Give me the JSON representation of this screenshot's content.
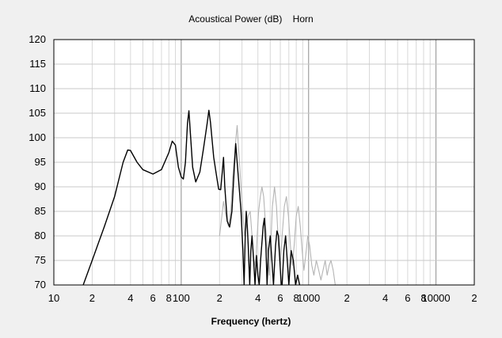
{
  "chart_data": {
    "type": "line",
    "title": "Acoustical Power (dB)    Horn",
    "xlabel": "Frequency (hertz)",
    "ylabel": "",
    "x_scale": "log",
    "xlim": [
      10,
      20000
    ],
    "ylim": [
      70,
      120
    ],
    "grid": true,
    "legend": "none",
    "y_tick_labels": [
      "70",
      "75",
      "80",
      "85",
      "90",
      "95",
      "100",
      "105",
      "110",
      "115",
      "120"
    ],
    "x_tick_labels": [
      {
        "x": 10,
        "label": "10"
      },
      {
        "x": 20,
        "label": "2"
      },
      {
        "x": 40,
        "label": "4"
      },
      {
        "x": 60,
        "label": "6"
      },
      {
        "x": 80,
        "label": "8"
      },
      {
        "x": 100,
        "label": "100"
      },
      {
        "x": 200,
        "label": "2"
      },
      {
        "x": 400,
        "label": "4"
      },
      {
        "x": 600,
        "label": "6"
      },
      {
        "x": 800,
        "label": "8"
      },
      {
        "x": 1000,
        "label": "1000"
      },
      {
        "x": 2000,
        "label": "2"
      },
      {
        "x": 4000,
        "label": "4"
      },
      {
        "x": 6000,
        "label": "6"
      },
      {
        "x": 8000,
        "label": "8"
      },
      {
        "x": 10000,
        "label": "10000"
      },
      {
        "x": 20000,
        "label": "2"
      }
    ],
    "series": [
      {
        "color": "#000000",
        "points": [
          [
            17,
            70
          ],
          [
            20,
            75
          ],
          [
            25,
            82
          ],
          [
            30,
            88
          ],
          [
            35,
            95
          ],
          [
            38,
            97.5
          ],
          [
            40,
            97.4
          ],
          [
            45,
            95
          ],
          [
            50,
            93.5
          ],
          [
            60,
            92.6
          ],
          [
            70,
            93.5
          ],
          [
            80,
            97
          ],
          [
            85,
            99.3
          ],
          [
            90,
            98.5
          ],
          [
            95,
            94
          ],
          [
            100,
            92
          ],
          [
            104,
            91.6
          ],
          [
            108,
            95
          ],
          [
            112,
            103
          ],
          [
            115,
            105.5
          ],
          [
            118,
            101
          ],
          [
            123,
            94
          ],
          [
            130,
            91
          ],
          [
            140,
            93
          ],
          [
            150,
            98
          ],
          [
            160,
            103
          ],
          [
            165,
            105.6
          ],
          [
            170,
            103
          ],
          [
            180,
            96
          ],
          [
            190,
            92
          ],
          [
            197,
            89.5
          ],
          [
            204,
            89.4
          ],
          [
            210,
            93
          ],
          [
            215,
            96
          ],
          [
            220,
            90
          ],
          [
            230,
            83
          ],
          [
            240,
            81.8
          ],
          [
            250,
            85
          ],
          [
            260,
            93
          ],
          [
            268,
            98.8
          ],
          [
            275,
            95
          ],
          [
            285,
            90
          ],
          [
            295,
            85
          ],
          [
            305,
            77
          ],
          [
            312,
            70
          ],
          [
            318,
            80
          ],
          [
            324,
            85
          ],
          [
            330,
            82
          ],
          [
            336,
            78
          ],
          [
            345,
            70
          ],
          [
            352,
            77
          ],
          [
            360,
            80
          ],
          [
            370,
            75
          ],
          [
            380,
            70
          ],
          [
            390,
            76
          ],
          [
            400,
            72
          ],
          [
            410,
            70
          ],
          [
            420,
            75
          ],
          [
            440,
            82
          ],
          [
            450,
            83.6
          ],
          [
            462,
            78
          ],
          [
            472,
            70
          ],
          [
            484,
            77
          ],
          [
            500,
            80
          ],
          [
            515,
            75
          ],
          [
            530,
            70
          ],
          [
            550,
            78
          ],
          [
            565,
            81
          ],
          [
            580,
            80
          ],
          [
            595,
            75
          ],
          [
            610,
            70
          ],
          [
            620,
            70
          ],
          [
            640,
            77
          ],
          [
            660,
            80
          ],
          [
            680,
            75
          ],
          [
            700,
            70
          ],
          [
            730,
            77
          ],
          [
            760,
            75
          ],
          [
            790,
            70
          ],
          [
            820,
            72
          ],
          [
            850,
            70
          ]
        ]
      },
      {
        "color": "#b4b4b4",
        "points": [
          [
            200,
            80
          ],
          [
            215,
            87
          ],
          [
            225,
            84
          ],
          [
            235,
            82
          ],
          [
            245,
            85
          ],
          [
            255,
            93
          ],
          [
            265,
            98
          ],
          [
            275,
            102.5
          ],
          [
            285,
            96
          ],
          [
            295,
            90
          ],
          [
            305,
            84
          ],
          [
            315,
            80
          ],
          [
            325,
            82
          ],
          [
            335,
            84
          ],
          [
            348,
            85
          ],
          [
            360,
            80
          ],
          [
            375,
            74
          ],
          [
            388,
            76
          ],
          [
            395,
            80
          ],
          [
            405,
            85
          ],
          [
            418,
            88
          ],
          [
            430,
            90
          ],
          [
            444,
            88
          ],
          [
            460,
            82
          ],
          [
            480,
            76
          ],
          [
            492,
            72
          ],
          [
            505,
            78
          ],
          [
            520,
            86
          ],
          [
            540,
            90
          ],
          [
            560,
            86
          ],
          [
            580,
            78
          ],
          [
            600,
            74
          ],
          [
            620,
            80
          ],
          [
            645,
            86
          ],
          [
            670,
            88
          ],
          [
            695,
            84
          ],
          [
            720,
            78
          ],
          [
            745,
            74
          ],
          [
            770,
            78
          ],
          [
            800,
            84
          ],
          [
            830,
            86
          ],
          [
            860,
            82
          ],
          [
            890,
            77
          ],
          [
            920,
            73
          ],
          [
            950,
            76
          ],
          [
            985,
            80
          ],
          [
            1020,
            78
          ],
          [
            1060,
            74
          ],
          [
            1100,
            72
          ],
          [
            1150,
            75
          ],
          [
            1200,
            73
          ],
          [
            1250,
            71
          ],
          [
            1300,
            73
          ],
          [
            1350,
            75
          ],
          [
            1400,
            72
          ],
          [
            1450,
            74
          ],
          [
            1500,
            75
          ],
          [
            1560,
            73
          ],
          [
            1620,
            70
          ]
        ]
      }
    ]
  }
}
